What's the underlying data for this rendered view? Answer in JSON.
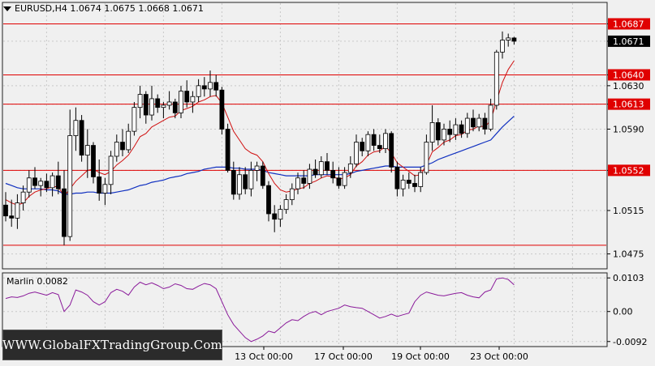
{
  "header": {
    "symbol_line": "EURUSD,H4  1.0674 1.0675 1.0668 1.0671"
  },
  "indicator": {
    "label": "Marlin 0.0082"
  },
  "watermark": {
    "text": "WWW.GlobalFXTradingGroup.Com"
  },
  "colors": {
    "background": "#f0f0f0",
    "bull": "#ffffff",
    "bear": "#000000",
    "level": "#e00000",
    "ma_fast": "#d01010",
    "ma_slow": "#1030c0",
    "oscillator": "#8a1a9a",
    "grid": "#c8c8c8"
  },
  "chart_data": [
    {
      "type": "candlestick",
      "symbol": "EURUSD",
      "timeframe": "H4",
      "ylim": [
        1.0462,
        1.0706
      ],
      "y_ticks": [
        1.0475,
        1.0515,
        1.0552,
        1.059,
        1.0613,
        1.063,
        1.064,
        1.0671,
        1.0687
      ],
      "x_ticks": [
        "13 Oct 00:00",
        "17 Oct 00:00",
        "19 Oct 00:00",
        "23 Oct 00:00"
      ],
      "current_price": 1.0671,
      "horizontal_levels": [
        1.0687,
        1.064,
        1.0613,
        1.0552,
        1.0483
      ],
      "candles": [
        [
          1.052,
          1.0532,
          1.0505,
          1.051
        ],
        [
          1.051,
          1.0525,
          1.05,
          1.0508
        ],
        [
          1.0508,
          1.053,
          1.0498,
          1.0522
        ],
        [
          1.0522,
          1.0538,
          1.0515,
          1.0532
        ],
        [
          1.0532,
          1.0552,
          1.0527,
          1.0545
        ],
        [
          1.0545,
          1.0555,
          1.0535,
          1.0538
        ],
        [
          1.0538,
          1.0545,
          1.0528,
          1.0542
        ],
        [
          1.0542,
          1.0549,
          1.0532,
          1.0536
        ],
        [
          1.0536,
          1.055,
          1.0528,
          1.0547
        ],
        [
          1.0547,
          1.056,
          1.053,
          1.0535
        ],
        [
          1.0535,
          1.0552,
          1.0483,
          1.0491
        ],
        [
          1.0491,
          1.0608,
          1.0487,
          1.0584
        ],
        [
          1.0584,
          1.061,
          1.057,
          1.0598
        ],
        [
          1.0598,
          1.0603,
          1.056,
          1.0566
        ],
        [
          1.0566,
          1.059,
          1.0545,
          1.0575
        ],
        [
          1.0575,
          1.0578,
          1.054,
          1.0546
        ],
        [
          1.0546,
          1.0562,
          1.0524,
          1.0531
        ],
        [
          1.0531,
          1.0545,
          1.052,
          1.0539
        ],
        [
          1.0539,
          1.057,
          1.053,
          1.0565
        ],
        [
          1.0565,
          1.0585,
          1.056,
          1.0578
        ],
        [
          1.0578,
          1.059,
          1.0565,
          1.0571
        ],
        [
          1.0571,
          1.0595,
          1.0568,
          1.0588
        ],
        [
          1.0588,
          1.0615,
          1.0584,
          1.061
        ],
        [
          1.061,
          1.063,
          1.06,
          1.0622
        ],
        [
          1.0622,
          1.0625,
          1.0595,
          1.0603
        ],
        [
          1.0603,
          1.063,
          1.0598,
          1.0618
        ],
        [
          1.0618,
          1.0622,
          1.0605,
          1.061
        ],
        [
          1.061,
          1.0615,
          1.06,
          1.0612
        ],
        [
          1.0612,
          1.0625,
          1.0608,
          1.0615
        ],
        [
          1.0615,
          1.0618,
          1.06,
          1.0605
        ],
        [
          1.0605,
          1.063,
          1.06,
          1.0625
        ],
        [
          1.0625,
          1.0635,
          1.061,
          1.0615
        ],
        [
          1.0615,
          1.0625,
          1.0605,
          1.062
        ],
        [
          1.062,
          1.0636,
          1.0615,
          1.063
        ],
        [
          1.063,
          1.0638,
          1.062,
          1.0627
        ],
        [
          1.0627,
          1.0644,
          1.062,
          1.0633
        ],
        [
          1.0633,
          1.064,
          1.062,
          1.0626
        ],
        [
          1.0626,
          1.0629,
          1.0585,
          1.059
        ],
        [
          1.059,
          1.0595,
          1.055,
          1.0552
        ],
        [
          1.0552,
          1.056,
          1.0525,
          1.053
        ],
        [
          1.053,
          1.0555,
          1.0525,
          1.0548
        ],
        [
          1.0548,
          1.0555,
          1.053,
          1.0535
        ],
        [
          1.0535,
          1.056,
          1.0528,
          1.0552
        ],
        [
          1.0552,
          1.056,
          1.0542,
          1.0556
        ],
        [
          1.0556,
          1.056,
          1.0535,
          1.0538
        ],
        [
          1.0538,
          1.0542,
          1.0505,
          1.0512
        ],
        [
          1.0512,
          1.052,
          1.0495,
          1.0507
        ],
        [
          1.0507,
          1.052,
          1.05,
          1.0516
        ],
        [
          1.0516,
          1.053,
          1.0512,
          1.0525
        ],
        [
          1.0525,
          1.054,
          1.052,
          1.0535
        ],
        [
          1.0535,
          1.055,
          1.053,
          1.0545
        ],
        [
          1.0545,
          1.0552,
          1.0535,
          1.054
        ],
        [
          1.054,
          1.0558,
          1.0535,
          1.0553
        ],
        [
          1.0553,
          1.0562,
          1.0545,
          1.0548
        ],
        [
          1.0548,
          1.0565,
          1.0545,
          1.056
        ],
        [
          1.056,
          1.0568,
          1.0548,
          1.0552
        ],
        [
          1.0552,
          1.056,
          1.054,
          1.0545
        ],
        [
          1.0545,
          1.0555,
          1.0535,
          1.0538
        ],
        [
          1.0538,
          1.0555,
          1.0535,
          1.055
        ],
        [
          1.055,
          1.0565,
          1.0545,
          1.0558
        ],
        [
          1.0558,
          1.0585,
          1.0555,
          1.0578
        ],
        [
          1.0578,
          1.0582,
          1.0565,
          1.057
        ],
        [
          1.057,
          1.0588,
          1.0565,
          1.0585
        ],
        [
          1.0585,
          1.059,
          1.057,
          1.0575
        ],
        [
          1.0575,
          1.0585,
          1.0568,
          1.0572
        ],
        [
          1.0572,
          1.059,
          1.0568,
          1.0586
        ],
        [
          1.0586,
          1.0588,
          1.055,
          1.0555
        ],
        [
          1.0555,
          1.056,
          1.0528,
          1.0535
        ],
        [
          1.0535,
          1.0548,
          1.0528,
          1.0543
        ],
        [
          1.0543,
          1.055,
          1.0535,
          1.054
        ],
        [
          1.054,
          1.0548,
          1.0532,
          1.0537
        ],
        [
          1.0537,
          1.0555,
          1.0532,
          1.055
        ],
        [
          1.055,
          1.0585,
          1.0548,
          1.0578
        ],
        [
          1.0578,
          1.0612,
          1.057,
          1.0596
        ],
        [
          1.0596,
          1.06,
          1.0575,
          1.058
        ],
        [
          1.058,
          1.0595,
          1.0575,
          1.059
        ],
        [
          1.059,
          1.0598,
          1.0578,
          1.0585
        ],
        [
          1.0585,
          1.06,
          1.058,
          1.0594
        ],
        [
          1.0594,
          1.0598,
          1.0582,
          1.0586
        ],
        [
          1.0586,
          1.0605,
          1.0582,
          1.06
        ],
        [
          1.06,
          1.0608,
          1.0588,
          1.0592
        ],
        [
          1.0592,
          1.0604,
          1.0588,
          1.06
        ],
        [
          1.06,
          1.0605,
          1.0585,
          1.059
        ],
        [
          1.059,
          1.0618,
          1.0588,
          1.0612
        ],
        [
          1.0612,
          1.0663,
          1.0608,
          1.0661
        ],
        [
          1.0661,
          1.068,
          1.0655,
          1.0672
        ],
        [
          1.0672,
          1.0678,
          1.0666,
          1.0674
        ],
        [
          1.0674,
          1.0675,
          1.0668,
          1.0671
        ]
      ],
      "ma_fast": [
        1.0525,
        1.0522,
        1.052,
        1.0522,
        1.0528,
        1.0532,
        1.0534,
        1.0535,
        1.0537,
        1.0537,
        1.0528,
        1.0535,
        1.0542,
        1.0547,
        1.0552,
        1.0553,
        1.055,
        1.0548,
        1.0551,
        1.0557,
        1.0561,
        1.0566,
        1.0574,
        1.0583,
        1.0586,
        1.0592,
        1.0595,
        1.0598,
        1.0601,
        1.0602,
        1.0607,
        1.0609,
        1.0611,
        1.0615,
        1.0617,
        1.062,
        1.0621,
        1.0614,
        1.0601,
        1.0588,
        1.058,
        1.0572,
        1.0568,
        1.0566,
        1.056,
        1.0549,
        1.054,
        1.0534,
        1.0532,
        1.0533,
        1.0535,
        1.0536,
        1.054,
        1.0542,
        1.0545,
        1.0547,
        1.0546,
        1.0544,
        1.0545,
        1.0548,
        1.0556,
        1.056,
        1.0566,
        1.0569,
        1.057,
        1.0574,
        1.0568,
        1.0559,
        1.0555,
        1.0551,
        1.0547,
        1.0548,
        1.0557,
        1.0569,
        1.0573,
        1.0578,
        1.058,
        1.0584,
        1.0585,
        1.0589,
        1.059,
        1.0593,
        1.0592,
        1.0598,
        1.0616,
        1.0633,
        1.0645,
        1.0653
      ],
      "ma_slow": [
        1.054,
        1.0538,
        1.0536,
        1.0535,
        1.0535,
        1.0535,
        1.0535,
        1.0534,
        1.0534,
        1.0533,
        1.053,
        1.053,
        1.0531,
        1.0531,
        1.0532,
        1.0532,
        1.0531,
        1.0531,
        1.0531,
        1.0532,
        1.0533,
        1.0534,
        1.0536,
        1.0538,
        1.0539,
        1.0541,
        1.0542,
        1.0543,
        1.0545,
        1.0546,
        1.0547,
        1.0549,
        1.055,
        1.0551,
        1.0553,
        1.0554,
        1.0555,
        1.0555,
        1.0555,
        1.0554,
        1.0554,
        1.0553,
        1.0553,
        1.0553,
        1.0552,
        1.055,
        1.0549,
        1.0548,
        1.0547,
        1.0547,
        1.0547,
        1.0547,
        1.0547,
        1.0548,
        1.0548,
        1.0548,
        1.0548,
        1.0548,
        1.0548,
        1.0549,
        1.0551,
        1.0552,
        1.0553,
        1.0554,
        1.0555,
        1.0556,
        1.0556,
        1.0555,
        1.0555,
        1.0555,
        1.0555,
        1.0555,
        1.0557,
        1.0559,
        1.0562,
        1.0564,
        1.0566,
        1.0568,
        1.057,
        1.0572,
        1.0574,
        1.0576,
        1.0578,
        1.058,
        1.0586,
        1.0592,
        1.0597,
        1.0602
      ]
    },
    {
      "type": "line",
      "name": "Marlin",
      "current_value": 0.0082,
      "ylim": [
        -0.0105,
        0.0116
      ],
      "y_ticks": [
        0.0103,
        0.0,
        -0.0092
      ],
      "values": [
        0.004,
        0.0045,
        0.0043,
        0.0048,
        0.0056,
        0.006,
        0.0055,
        0.005,
        0.0058,
        0.0052,
        0.0,
        0.002,
        0.0066,
        0.006,
        0.005,
        0.003,
        0.002,
        0.003,
        0.0058,
        0.0068,
        0.0062,
        0.005,
        0.0075,
        0.009,
        0.0082,
        0.0088,
        0.008,
        0.007,
        0.0075,
        0.0085,
        0.008,
        0.007,
        0.0068,
        0.0078,
        0.0086,
        0.0082,
        0.007,
        0.003,
        -0.001,
        -0.004,
        -0.006,
        -0.008,
        -0.0092,
        -0.0085,
        -0.0075,
        -0.006,
        -0.0065,
        -0.005,
        -0.0035,
        -0.0025,
        -0.0028,
        -0.0015,
        -0.0005,
        0.0,
        -0.001,
        0.0,
        0.0005,
        0.001,
        0.002,
        0.0015,
        0.0012,
        0.001,
        0.0,
        -0.001,
        -0.002,
        -0.0015,
        -0.0008,
        -0.0015,
        -0.001,
        -0.0005,
        0.003,
        0.005,
        0.006,
        0.0055,
        0.005,
        0.0048,
        0.0052,
        0.0056,
        0.0058,
        0.005,
        0.0045,
        0.0042,
        0.006,
        0.0066,
        0.01,
        0.0103,
        0.0098,
        0.0082
      ]
    }
  ]
}
